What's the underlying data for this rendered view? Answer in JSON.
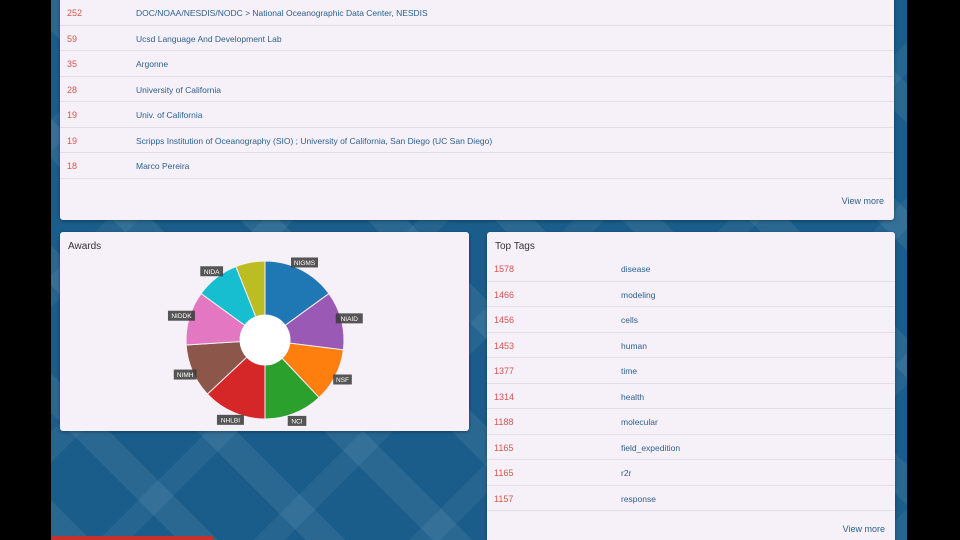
{
  "top_list": {
    "rows": [
      {
        "count": "252",
        "name": "DOC/NOAA/NESDIS/NODC > National Oceanographic Data Center, NESDIS"
      },
      {
        "count": "59",
        "name": "Ucsd Language And Development Lab"
      },
      {
        "count": "35",
        "name": "Argonne"
      },
      {
        "count": "28",
        "name": "University of California"
      },
      {
        "count": "19",
        "name": "Univ. of California"
      },
      {
        "count": "19",
        "name": "Scripps Institution of Oceanography (SIO) ; University of California, San Diego (UC San Diego)"
      },
      {
        "count": "18",
        "name": "Marco Pereira"
      }
    ],
    "view_more": "View more"
  },
  "awards": {
    "title": "Awards",
    "chart_data": {
      "type": "pie",
      "donut": true,
      "slices": [
        {
          "label": "NIGMS",
          "value": 15,
          "color": "#1f77b4"
        },
        {
          "label": "NIAID",
          "value": 12,
          "color": "#9b59b6"
        },
        {
          "label": "NSF",
          "value": 11,
          "color": "#ff7f0e"
        },
        {
          "label": "NCI",
          "value": 12,
          "color": "#2ca02c"
        },
        {
          "label": "NHLBI",
          "value": 13,
          "color": "#d62728"
        },
        {
          "label": "NIMH",
          "value": 11,
          "color": "#8c564b"
        },
        {
          "label": "NIDDK",
          "value": 11,
          "color": "#e377c2"
        },
        {
          "label": "NIDA",
          "value": 9,
          "color": "#17becf"
        },
        {
          "label": "",
          "value": 6,
          "color": "#bcbd22"
        }
      ]
    }
  },
  "top_tags": {
    "title": "Top Tags",
    "rows": [
      {
        "count": "1578",
        "name": "disease"
      },
      {
        "count": "1466",
        "name": "modeling"
      },
      {
        "count": "1456",
        "name": "cells"
      },
      {
        "count": "1453",
        "name": "human"
      },
      {
        "count": "1377",
        "name": "time"
      },
      {
        "count": "1314",
        "name": "health"
      },
      {
        "count": "1188",
        "name": "molecular"
      },
      {
        "count": "1165",
        "name": "field_expedition"
      },
      {
        "count": "1165",
        "name": "r2r"
      },
      {
        "count": "1157",
        "name": "response"
      }
    ],
    "view_more": "View more"
  }
}
